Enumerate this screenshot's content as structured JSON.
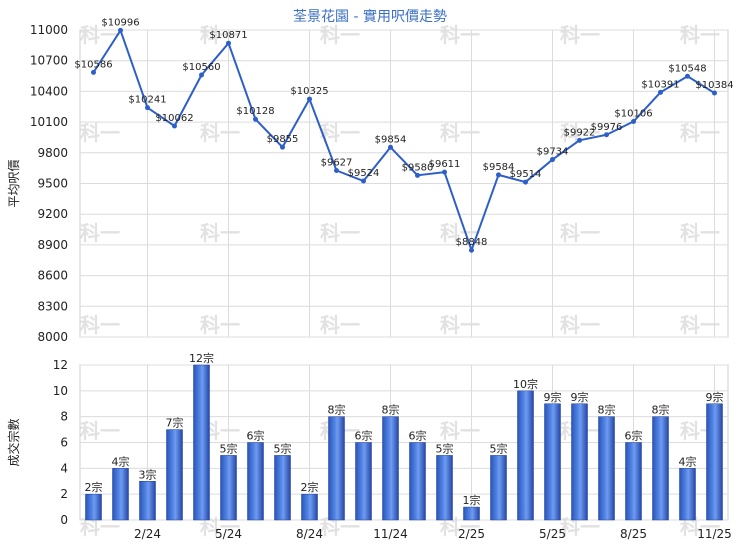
{
  "title": "荃景花園 - 實用呎價走勢",
  "watermark": "科一",
  "chart_data": [
    {
      "type": "line",
      "ylabel": "平均呎價",
      "ylim": [
        8000,
        11000
      ],
      "yticks": [
        "11000",
        "10700",
        "10400",
        "10100",
        "9800",
        "9500",
        "9200",
        "8900",
        "8600",
        "8300",
        "8000"
      ],
      "ytick_values": [
        11000,
        10700,
        10400,
        10100,
        9800,
        9500,
        9200,
        8900,
        8600,
        8300,
        8000
      ],
      "values": [
        10586,
        10996,
        10241,
        10062,
        10560,
        10871,
        10128,
        9855,
        10325,
        9627,
        9524,
        9854,
        9580,
        9611,
        8848,
        9584,
        9514,
        9734,
        9922,
        9976,
        10106,
        10391,
        10548,
        10384
      ],
      "labels": [
        "$10586",
        "$10996",
        "$10241",
        "$10062",
        "$10560",
        "$10871",
        "$10128",
        "$9855",
        "$10325",
        "$9627",
        "$9524",
        "$9854",
        "$9580",
        "$9611",
        "$8848",
        "$9584",
        "$9514",
        "$9734",
        "$9922",
        "$9976",
        "$10106",
        "$10391",
        "$10548",
        "$10384"
      ],
      "color": "#2e5fc8",
      "grid": true
    },
    {
      "type": "bar",
      "ylabel": "成交宗數",
      "ylim": [
        0,
        12
      ],
      "yticks": [
        "12",
        "10",
        "8",
        "6",
        "4",
        "2",
        "0"
      ],
      "ytick_values": [
        12,
        10,
        8,
        6,
        4,
        2,
        0
      ],
      "xticks": [
        "2/24",
        "5/24",
        "8/24",
        "11/24",
        "2/25",
        "5/25",
        "8/25",
        "11/25"
      ],
      "xtick_index": [
        2,
        5,
        8,
        11,
        14,
        17,
        20,
        23
      ],
      "values": [
        2,
        4,
        3,
        7,
        12,
        5,
        6,
        5,
        2,
        8,
        6,
        8,
        6,
        5,
        1,
        5,
        10,
        9,
        9,
        8,
        6,
        8,
        4,
        9
      ],
      "labels": [
        "2宗",
        "4宗",
        "3宗",
        "7宗",
        "12宗",
        "5宗",
        "6宗",
        "5宗",
        "2宗",
        "8宗",
        "6宗",
        "8宗",
        "6宗",
        "5宗",
        "1宗",
        "5宗",
        "10宗",
        "9宗",
        "9宗",
        "8宗",
        "6宗",
        "8宗",
        "4宗",
        "9宗"
      ],
      "color": "#3563c8",
      "grid": true
    }
  ]
}
